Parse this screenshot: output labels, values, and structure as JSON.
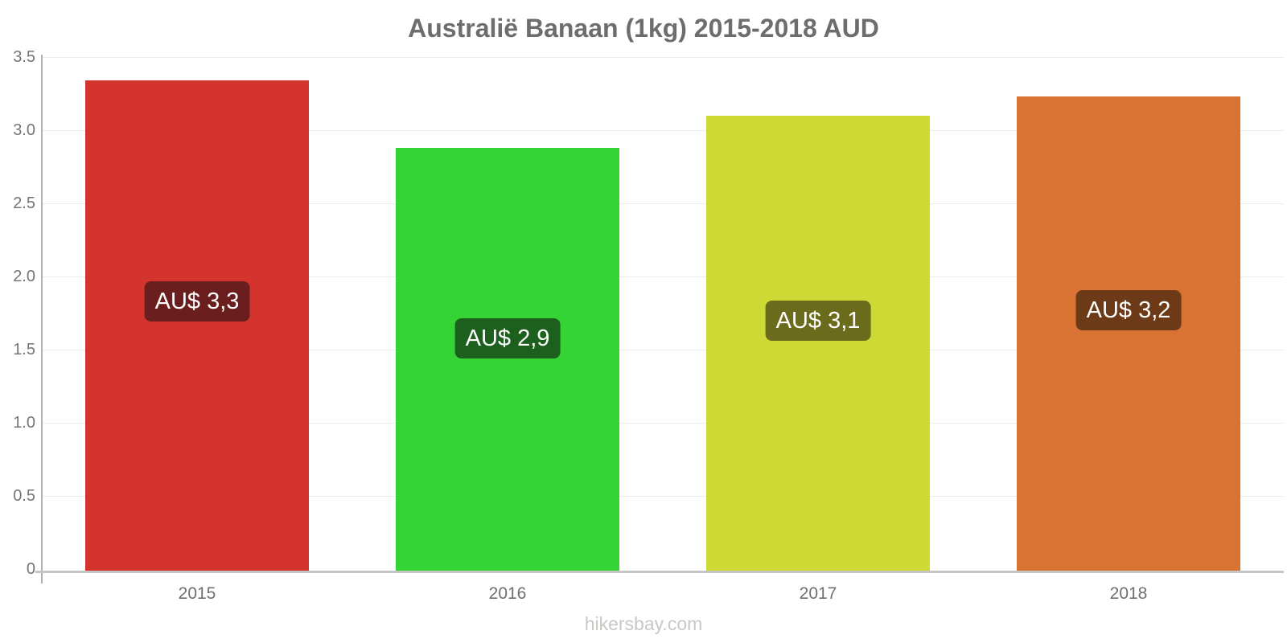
{
  "page": {
    "footer": "hikersbay.com"
  },
  "chart_data": {
    "type": "bar",
    "title": "Australië Banaan (1kg) 2015-2018 AUD",
    "xlabel": "",
    "ylabel": "",
    "categories": [
      "2015",
      "2016",
      "2017",
      "2018"
    ],
    "values": [
      3.35,
      2.89,
      3.11,
      3.24
    ],
    "currency": "AUD",
    "bar_value_labels": [
      "AU$ 3,3",
      "AU$ 2,9",
      "AU$ 3,1",
      "AU$ 3,2"
    ],
    "bar_colors": [
      "#d3352e",
      "#33d433",
      "#cdda35",
      "#d87333"
    ],
    "bar_label_bg_colors": [
      "#6a1f1e",
      "#1d601d",
      "#6a6c1c",
      "#6d3a17"
    ],
    "ylim": [
      0,
      3.5
    ],
    "yticks": [
      0,
      0.5,
      1.0,
      1.5,
      2.0,
      2.5,
      3.0,
      3.5
    ],
    "ytick_labels": [
      "0",
      "0.5",
      "1.0",
      "1.5",
      "2.0",
      "2.5",
      "3.0",
      "3.5"
    ],
    "grid": true,
    "legend": false
  }
}
